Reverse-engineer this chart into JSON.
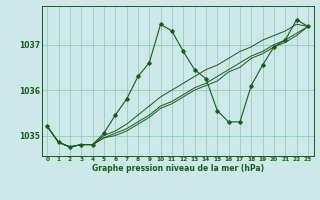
{
  "title": "Graphe pression niveau de la mer (hPa)",
  "bg_color": "#cce8e8",
  "grid_color": "#99ccbb",
  "line_color": "#1a5c1a",
  "marker_color": "#1a5c1a",
  "xlim": [
    -0.5,
    23.5
  ],
  "ylim": [
    1034.55,
    1037.85
  ],
  "yticks": [
    1035,
    1036,
    1037
  ],
  "xticks": [
    0,
    1,
    2,
    3,
    4,
    5,
    6,
    7,
    8,
    9,
    10,
    11,
    12,
    13,
    14,
    15,
    16,
    17,
    18,
    19,
    20,
    21,
    22,
    23
  ],
  "series": [
    [
      1035.2,
      1034.85,
      1034.75,
      1034.8,
      1034.8,
      1035.05,
      1035.45,
      1035.8,
      1036.3,
      1036.6,
      1037.45,
      1037.3,
      1036.85,
      1036.45,
      1036.25,
      1035.55,
      1035.3,
      1035.3,
      1036.1,
      1036.55,
      1036.95,
      1037.1,
      1037.55,
      1037.4
    ],
    [
      1035.2,
      1034.85,
      1034.75,
      1034.8,
      1034.8,
      1035.0,
      1035.1,
      1035.25,
      1035.45,
      1035.65,
      1035.85,
      1036.0,
      1036.15,
      1036.3,
      1036.45,
      1036.55,
      1036.7,
      1036.85,
      1036.95,
      1037.1,
      1037.2,
      1037.3,
      1037.45,
      1037.4
    ],
    [
      1035.2,
      1034.85,
      1034.75,
      1034.8,
      1034.8,
      1034.95,
      1035.05,
      1035.15,
      1035.3,
      1035.45,
      1035.65,
      1035.75,
      1035.9,
      1036.05,
      1036.15,
      1036.3,
      1036.45,
      1036.6,
      1036.75,
      1036.85,
      1037.0,
      1037.1,
      1037.25,
      1037.4
    ],
    [
      1035.2,
      1034.85,
      1034.75,
      1034.8,
      1034.8,
      1034.95,
      1035.0,
      1035.1,
      1035.25,
      1035.4,
      1035.6,
      1035.7,
      1035.85,
      1036.0,
      1036.1,
      1036.2,
      1036.4,
      1036.5,
      1036.7,
      1036.8,
      1036.95,
      1037.05,
      1037.2,
      1037.4
    ]
  ]
}
